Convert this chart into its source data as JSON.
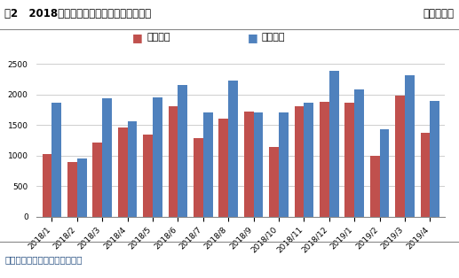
{
  "title_left": "图2   2018年以来集合信托产品规模变动趋势",
  "title_right": "单位：亿元",
  "source": "数据来源：用益金融信托研究院",
  "categories": [
    "2018/1",
    "2018/2",
    "2018/3",
    "2018/4",
    "2018/5",
    "2018/6",
    "2018/7",
    "2018/8",
    "2018/9",
    "2018/10",
    "2018/11",
    "2018/12",
    "2019/1",
    "2019/2",
    "2019/3",
    "2019/4"
  ],
  "chengli": [
    1030,
    900,
    1210,
    1460,
    1340,
    1810,
    1290,
    1600,
    1720,
    1140,
    1810,
    1880,
    1870,
    1000,
    1980,
    1370
  ],
  "faxing": [
    1870,
    960,
    1945,
    1560,
    1950,
    2150,
    1700,
    2230,
    1700,
    1710,
    1870,
    2390,
    2080,
    1430,
    2320,
    1900
  ],
  "chengli_color": "#C0504D",
  "faxing_color": "#4F81BD",
  "legend_chengli": "成立规模",
  "legend_faxing": "发行规模",
  "ylim": [
    0,
    2500
  ],
  "yticks": [
    0,
    500,
    1000,
    1500,
    2000,
    2500
  ],
  "bar_width": 0.38,
  "bg_color": "#FFFFFF",
  "grid_color": "#BBBBBB",
  "title_fontsize": 8.5,
  "axis_fontsize": 6.5,
  "legend_fontsize": 8,
  "source_color": "#1F497D",
  "title_color": "#000000",
  "header_bg": "#F2F2F2"
}
